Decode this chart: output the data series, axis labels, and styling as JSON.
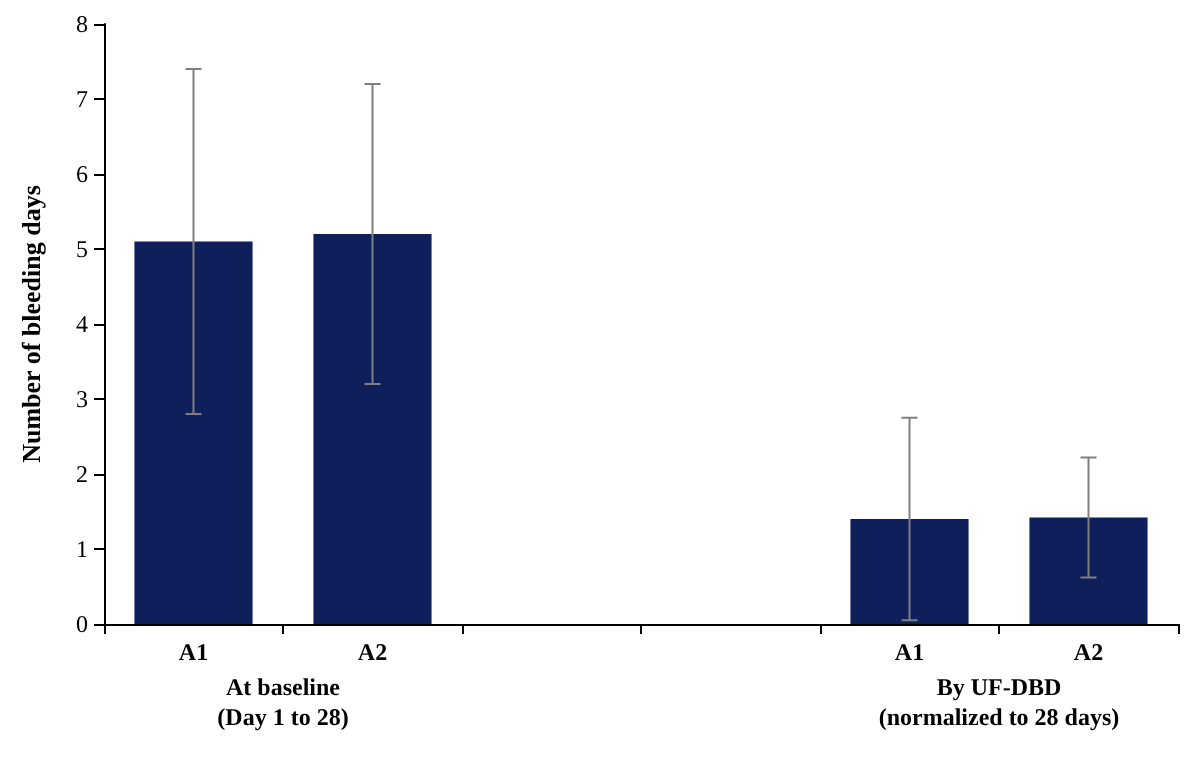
{
  "chart_data": {
    "type": "bar",
    "ylabel": "Number of bleeding days",
    "categories": [
      "A1",
      "A2",
      null,
      null,
      "A1",
      "A2"
    ],
    "values": [
      5.1,
      5.2,
      null,
      null,
      1.4,
      1.42
    ],
    "colors": [
      "#0f1f5c",
      "#0f1f5c",
      null,
      null,
      "#0f1f5c",
      "#0f1f5c"
    ],
    "errors": [
      2.3,
      2.0,
      null,
      null,
      1.35,
      0.8
    ],
    "ylim": [
      0,
      8
    ],
    "yticks": [
      0,
      1,
      2,
      3,
      4,
      5,
      6,
      7,
      8
    ],
    "grid": false,
    "annotations": [
      "At baseline\n(Day 1 to 28)",
      "By UF-DBD\n(normalized to 28 days)"
    ]
  }
}
